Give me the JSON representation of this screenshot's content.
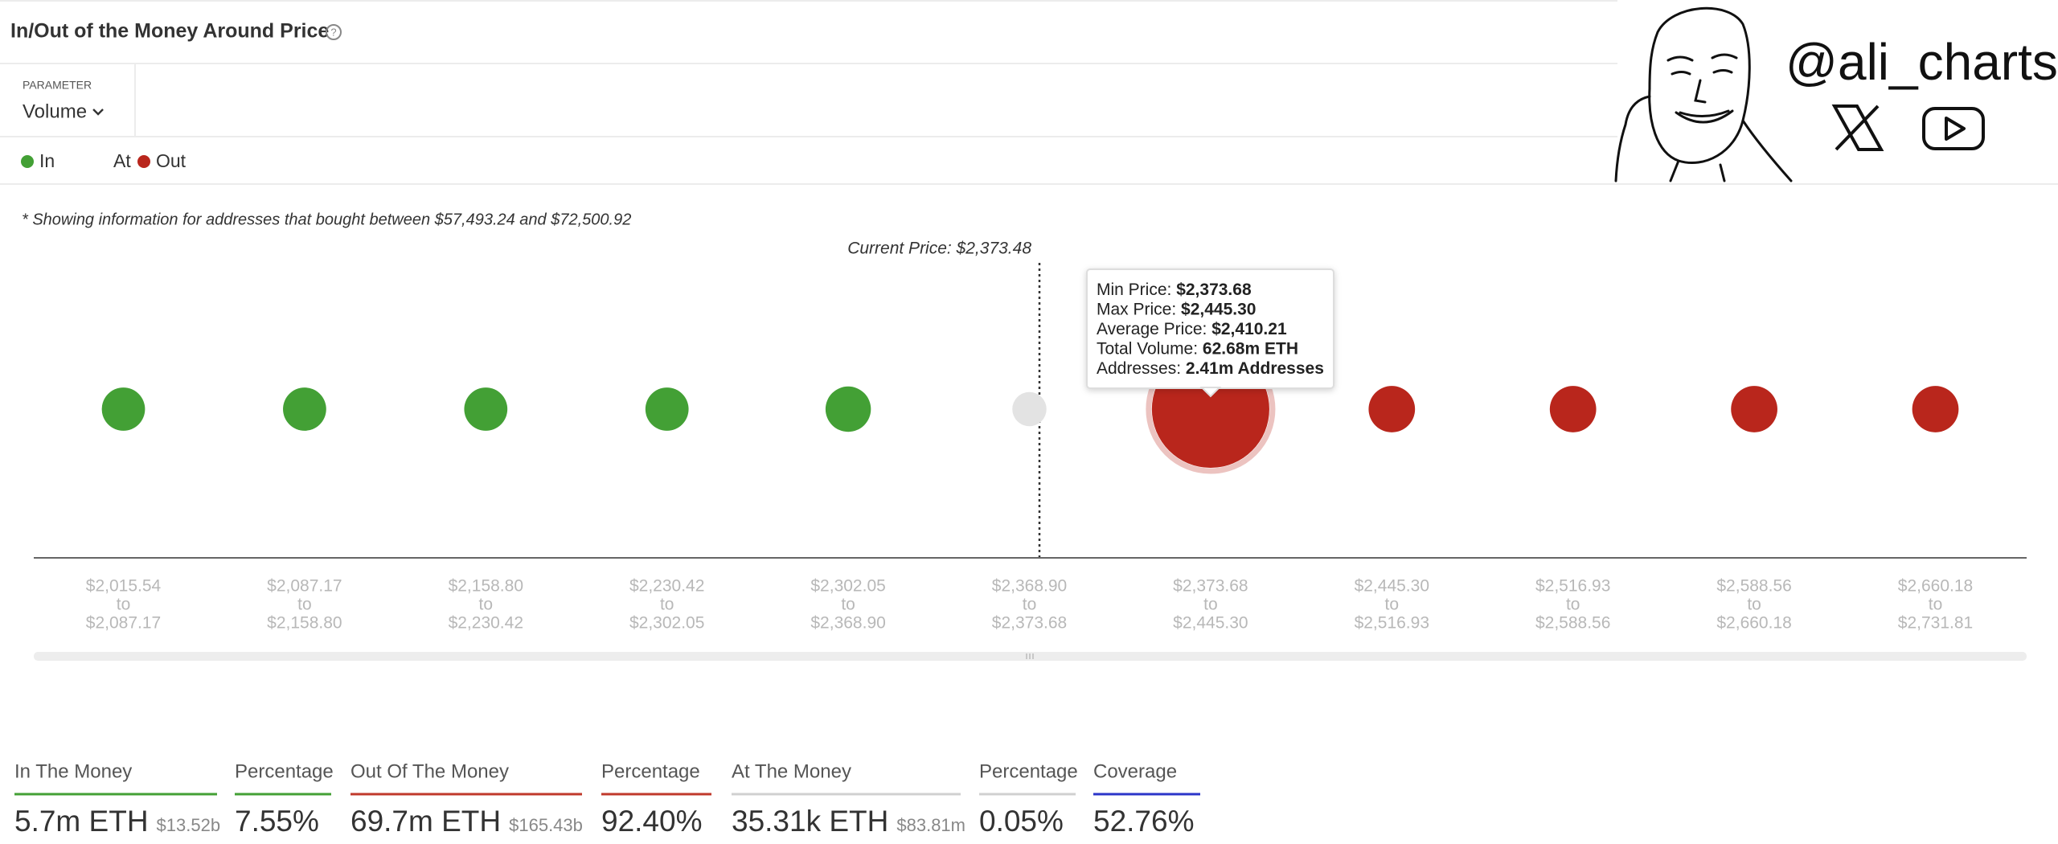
{
  "header": {
    "title": "In/Out of the Money Around Price",
    "parameter_label": "PARAMETER",
    "parameter_value": "Volume"
  },
  "branding": {
    "handle": "@ali_charts"
  },
  "chart_data": {
    "type": "bubble",
    "note": "* Showing information for addresses that bought between $57,493.24 and $72,500.92",
    "annotation": "Current Price: $2,373.48",
    "categories": [
      [
        "$2,015.54",
        "to",
        "$2,087.17"
      ],
      [
        "$2,087.17",
        "to",
        "$2,158.80"
      ],
      [
        "$2,158.80",
        "to",
        "$2,230.42"
      ],
      [
        "$2,230.42",
        "to",
        "$2,302.05"
      ],
      [
        "$2,302.05",
        "to",
        "$2,368.90"
      ],
      [
        "$2,368.90",
        "to",
        "$2,373.68"
      ],
      [
        "$2,373.68",
        "to",
        "$2,445.30"
      ],
      [
        "$2,445.30",
        "to",
        "$2,516.93"
      ],
      [
        "$2,516.93",
        "to",
        "$2,588.56"
      ],
      [
        "$2,588.56",
        "to",
        "$2,660.18"
      ],
      [
        "$2,660.18",
        "to",
        "$2,731.81"
      ]
    ],
    "series": [
      {
        "name": "In",
        "color": "#43a035",
        "values": [
          1.05,
          1.05,
          1.05,
          1.05,
          1.5,
          null,
          null,
          null,
          null,
          null,
          null
        ]
      },
      {
        "name": "At",
        "color": "#e3e3e3",
        "values": [
          null,
          null,
          null,
          null,
          null,
          0.035,
          null,
          null,
          null,
          null,
          null
        ]
      },
      {
        "name": "Out",
        "color": "#b9261c",
        "values": [
          null,
          null,
          null,
          null,
          null,
          null,
          62.68,
          1.75,
          1.75,
          1.75,
          1.75
        ]
      }
    ],
    "tooltip": {
      "rows": [
        {
          "label": "Min Price:",
          "value": "$2,373.68"
        },
        {
          "label": "Max Price:",
          "value": "$2,445.30"
        },
        {
          "label": "Average Price:",
          "value": "$2,410.21"
        },
        {
          "label": "Total Volume:",
          "value": "62.68m ETH"
        },
        {
          "label": "Addresses:",
          "value": "2.41m Addresses"
        }
      ]
    }
  },
  "summary": [
    {
      "label": "In The Money",
      "value": "5.7m ETH",
      "sub": "$13.52b",
      "color": "#43a035"
    },
    {
      "label": "Percentage",
      "value": "7.55%",
      "color": "#43a035"
    },
    {
      "label": "Out Of The Money",
      "value": "69.7m ETH",
      "sub": "$165.43b",
      "color": "#c0392b"
    },
    {
      "label": "Percentage",
      "value": "92.40%",
      "color": "#c0392b"
    },
    {
      "label": "At The Money",
      "value": "35.31k ETH",
      "sub": "$83.81m",
      "color": "#d0d0d0"
    },
    {
      "label": "Percentage",
      "value": "0.05%",
      "color": "#d0d0d0"
    },
    {
      "label": "Coverage",
      "value": "52.76%",
      "color": "#2b35c9"
    }
  ]
}
